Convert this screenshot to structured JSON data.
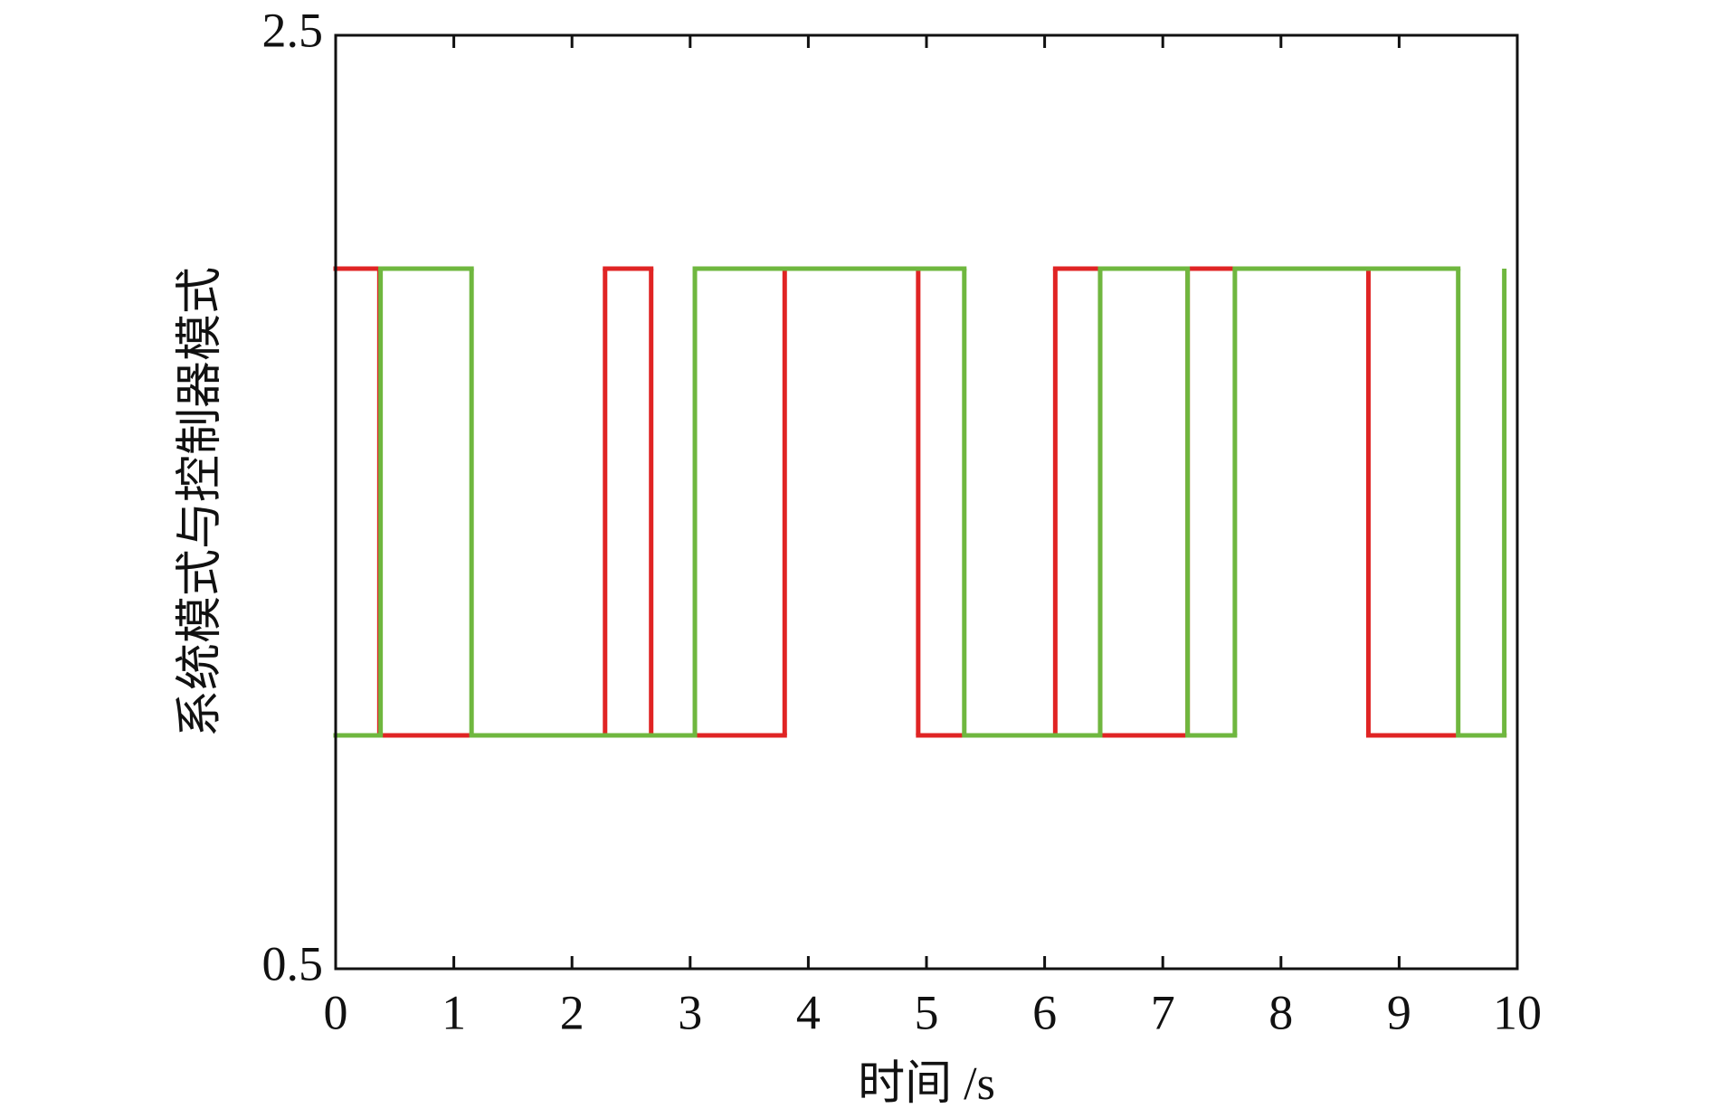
{
  "chart_data": {
    "type": "step",
    "xlabel": "时间 /s",
    "ylabel": "系统模式与控制器模式",
    "xlim": [
      0,
      10
    ],
    "xticks": [
      0,
      1,
      2,
      3,
      4,
      5,
      6,
      7,
      8,
      9,
      10
    ],
    "ylim": [
      0.5,
      2.5
    ],
    "yticks": [
      0.5,
      2.5
    ],
    "series": [
      {
        "color": "#e02424",
        "x": [
          0,
          0.37,
          2.28,
          2.67,
          3.8,
          4.93,
          6.09,
          6.47,
          7.21,
          8.74,
          9.89
        ],
        "values": [
          2,
          1,
          2,
          1,
          2,
          1,
          2,
          1,
          2,
          1,
          1
        ]
      },
      {
        "color": "#6fb73f",
        "x": [
          0,
          0.38,
          1.15,
          3.04,
          5.32,
          6.47,
          7.21,
          7.61,
          9.5,
          9.89
        ],
        "values": [
          1,
          2,
          1,
          2,
          1,
          2,
          1,
          2,
          1,
          2
        ]
      }
    ]
  }
}
